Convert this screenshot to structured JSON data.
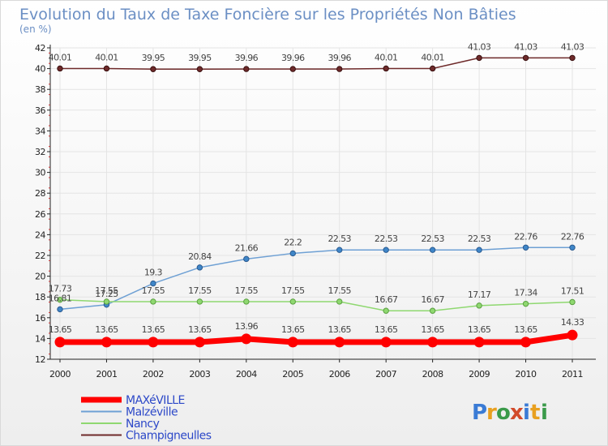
{
  "chart_data": {
    "type": "line",
    "title": "Evolution du Taux de Taxe Foncière sur les Propriétés Non Bâties",
    "subtitle": "(en %)",
    "x": [
      "2000",
      "2001",
      "2002",
      "2003",
      "2004",
      "2005",
      "2006",
      "2007",
      "2008",
      "2009",
      "2010",
      "2011"
    ],
    "ylim": [
      12,
      42
    ],
    "yticks": [
      12,
      14,
      16,
      18,
      20,
      22,
      24,
      26,
      28,
      30,
      32,
      34,
      36,
      38,
      40,
      42
    ],
    "series": [
      {
        "name": "Champigneulles",
        "color": "#6e2a2a",
        "values": [
          40.01,
          40.01,
          39.95,
          39.95,
          39.96,
          39.96,
          39.96,
          40.01,
          40.01,
          41.03,
          41.03,
          41.03
        ],
        "labels": [
          "40.01",
          "40.01",
          "39.95",
          "39.95",
          "39.96",
          "39.96",
          "39.96",
          "40.01",
          "40.01",
          "41.03",
          "41.03",
          "41.03"
        ]
      },
      {
        "name": "Malzéville",
        "color": "#6ea0d4",
        "values": [
          16.81,
          17.25,
          19.3,
          20.84,
          21.66,
          22.2,
          22.53,
          22.53,
          22.53,
          22.53,
          22.76,
          22.76
        ],
        "labels": [
          "16.81",
          "17.25",
          "19.3",
          "20.84",
          "21.66",
          "22.2",
          "22.53",
          "22.53",
          "22.53",
          "22.53",
          "22.76",
          "22.76"
        ]
      },
      {
        "name": "Nancy",
        "color": "#8fd870",
        "values": [
          17.73,
          17.55,
          17.55,
          17.55,
          17.55,
          17.55,
          17.55,
          16.67,
          16.67,
          17.17,
          17.34,
          17.51
        ],
        "labels": [
          "17.73",
          "17.55",
          "17.55",
          "17.55",
          "17.55",
          "17.55",
          "17.55",
          "16.67",
          "16.67",
          "17.17",
          "17.34",
          "17.51"
        ]
      },
      {
        "name": "MAXéVILLE",
        "color": "#ff0000",
        "values": [
          13.65,
          13.65,
          13.65,
          13.65,
          13.96,
          13.65,
          13.65,
          13.65,
          13.65,
          13.65,
          13.65,
          14.33
        ],
        "labels": [
          "13.65",
          "13.65",
          "13.65",
          "13.65",
          "13.96",
          "13.65",
          "13.65",
          "13.65",
          "13.65",
          "13.65",
          "13.65",
          "14.33"
        ]
      }
    ],
    "legend": [
      "MAXéVILLE",
      "Malzéville",
      "Nancy",
      "Champigneulles"
    ]
  },
  "logo": {
    "text": "Proxiti"
  }
}
